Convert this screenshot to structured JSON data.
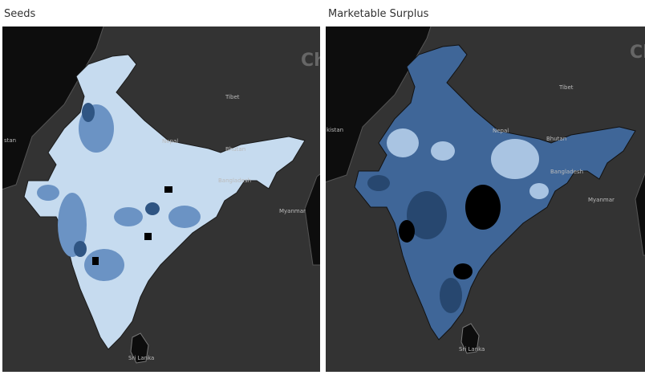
{
  "panels": [
    {
      "title": "Seeds",
      "labels": [
        "Ch",
        "Tibet",
        "stan",
        "Nepal",
        "Bhutan",
        "Bangladesh",
        "Myanmar",
        "Sri Lanka"
      ]
    },
    {
      "title": "Marketable Surplus",
      "labels": [
        "Ch",
        "Tibet",
        "kistan",
        "Nepal",
        "Bhutan",
        "Bangladesh",
        "Myanmar",
        "Sri Lanka"
      ]
    }
  ]
}
